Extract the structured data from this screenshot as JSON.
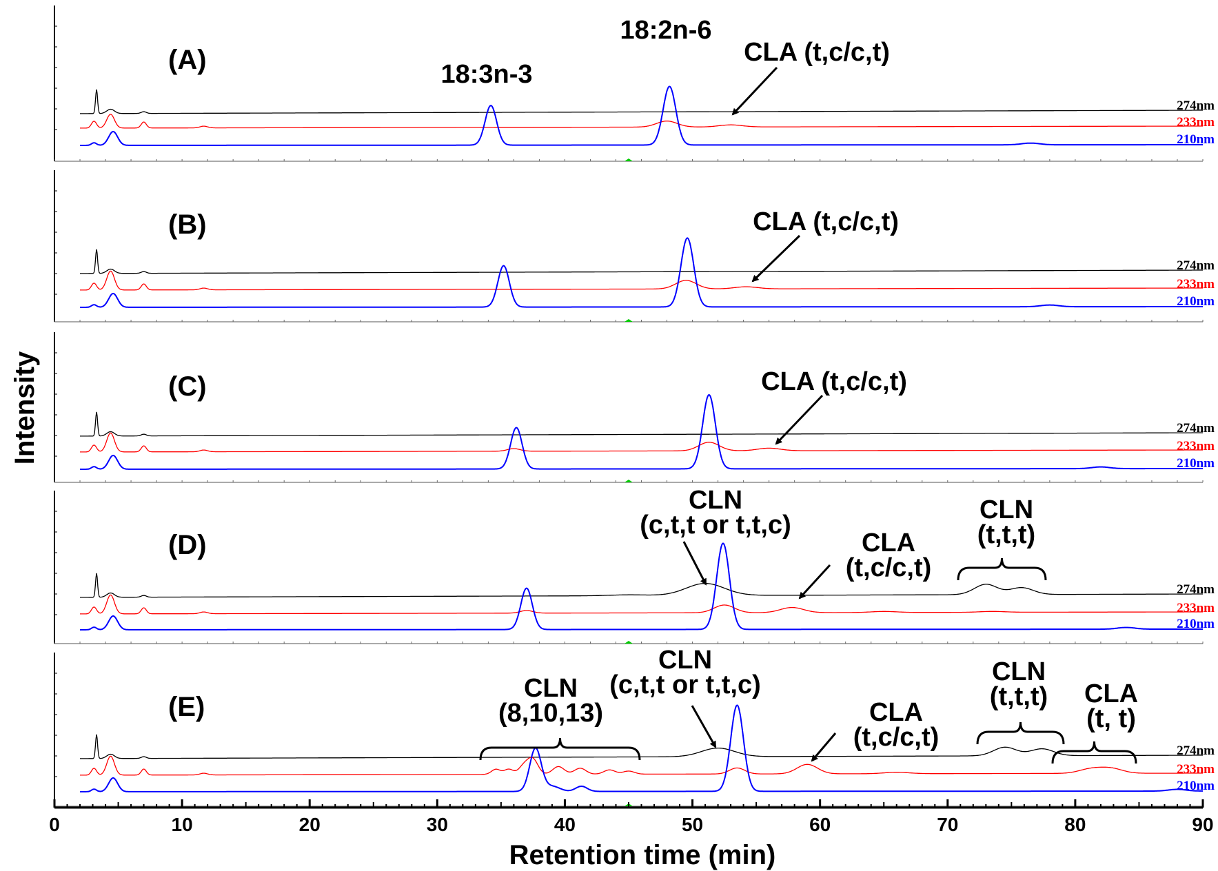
{
  "chart_data": {
    "type": "line",
    "ylabel": "Intensity",
    "xlabel": "Retention time (min)",
    "xlim": [
      0,
      90
    ],
    "x_ticks": [
      "0",
      "10",
      "20",
      "30",
      "40",
      "50",
      "60",
      "70",
      "80",
      "90"
    ],
    "grid": false,
    "series_names": [
      "274nm",
      "233nm",
      "210nm"
    ],
    "colors": {
      "274nm": "#000000",
      "233nm": "#ff0000",
      "210nm": "#0000ff"
    },
    "panels": [
      {
        "label": "(A)",
        "peak_labels": [
          "18:3n-3",
          "18:2n-6"
        ],
        "annotations": [
          {
            "text": "CLA (t,c/c,t)"
          }
        ],
        "series": [
          {
            "name": "274nm",
            "baseline": 0,
            "peaks": [
              [
                3.3,
                1.4,
                0.08
              ],
              [
                4.4,
                0.25,
                0.3
              ],
              [
                7.0,
                0.1,
                0.2
              ]
            ]
          },
          {
            "name": "233nm",
            "baseline": 0,
            "peaks": [
              [
                3.1,
                0.4,
                0.2
              ],
              [
                4.4,
                0.8,
                0.3
              ],
              [
                7.0,
                0.35,
                0.2
              ],
              [
                11.7,
                0.1,
                0.3
              ],
              [
                48.0,
                0.35,
                0.8
              ],
              [
                53.0,
                0.12,
                0.9
              ]
            ]
          },
          {
            "name": "210nm",
            "baseline": 0,
            "peaks": [
              [
                3.1,
                0.15,
                0.2
              ],
              [
                4.6,
                0.8,
                0.35
              ],
              [
                34.2,
                2.3,
                0.45
              ],
              [
                48.2,
                3.4,
                0.5
              ],
              [
                76.5,
                0.1,
                0.7
              ]
            ]
          }
        ]
      },
      {
        "label": "(B)",
        "peak_labels": [],
        "annotations": [
          {
            "text": "CLA (t,c/c,t)"
          }
        ],
        "series": [
          {
            "name": "274nm",
            "baseline": 0,
            "peaks": [
              [
                3.3,
                1.4,
                0.08
              ],
              [
                4.4,
                0.25,
                0.3
              ],
              [
                7.0,
                0.1,
                0.2
              ]
            ]
          },
          {
            "name": "233nm",
            "baseline": 0,
            "peaks": [
              [
                3.1,
                0.4,
                0.2
              ],
              [
                4.4,
                1.1,
                0.3
              ],
              [
                7.0,
                0.35,
                0.2
              ],
              [
                11.7,
                0.1,
                0.3
              ],
              [
                49.5,
                0.5,
                0.8
              ],
              [
                54.2,
                0.12,
                0.9
              ]
            ]
          },
          {
            "name": "210nm",
            "baseline": 0,
            "peaks": [
              [
                3.1,
                0.15,
                0.2
              ],
              [
                4.6,
                0.8,
                0.35
              ],
              [
                35.2,
                2.4,
                0.45
              ],
              [
                49.6,
                4.0,
                0.5
              ],
              [
                78.0,
                0.1,
                0.7
              ]
            ]
          }
        ]
      },
      {
        "label": "(C)",
        "peak_labels": [],
        "annotations": [
          {
            "text": "CLA (t,c/c,t)"
          }
        ],
        "series": [
          {
            "name": "274nm",
            "baseline": 0,
            "peaks": [
              [
                3.3,
                1.4,
                0.08
              ],
              [
                4.4,
                0.25,
                0.3
              ],
              [
                7.0,
                0.1,
                0.2
              ]
            ]
          },
          {
            "name": "233nm",
            "baseline": 0,
            "peaks": [
              [
                3.1,
                0.4,
                0.2
              ],
              [
                4.4,
                1.1,
                0.3
              ],
              [
                7.0,
                0.35,
                0.2
              ],
              [
                11.7,
                0.1,
                0.3
              ],
              [
                36.0,
                0.15,
                0.5
              ],
              [
                51.3,
                0.5,
                0.8
              ],
              [
                56.0,
                0.15,
                0.9
              ]
            ]
          },
          {
            "name": "210nm",
            "baseline": 0,
            "peaks": [
              [
                3.1,
                0.15,
                0.2
              ],
              [
                4.6,
                0.8,
                0.35
              ],
              [
                36.2,
                2.4,
                0.45
              ],
              [
                51.3,
                4.3,
                0.5
              ],
              [
                82.0,
                0.1,
                0.7
              ]
            ]
          }
        ]
      },
      {
        "label": "(D)",
        "peak_labels": [],
        "annotations": [
          {
            "text": "CLN",
            "text2": "(c,t,t or t,t,c)"
          },
          {
            "text": "CLA",
            "text2": "(t,c/c,t)"
          },
          {
            "text": "CLN",
            "text2": "(t,t,t)"
          }
        ],
        "series": [
          {
            "name": "274nm",
            "baseline": 0,
            "peaks": [
              [
                3.3,
                1.4,
                0.08
              ],
              [
                4.4,
                0.25,
                0.3
              ],
              [
                7.0,
                0.1,
                0.2
              ],
              [
                45.0,
                0.05,
                1.5
              ],
              [
                51.0,
                0.7,
                1.5
              ],
              [
                73.0,
                0.6,
                0.9
              ],
              [
                75.8,
                0.4,
                0.9
              ]
            ]
          },
          {
            "name": "233nm",
            "baseline": 0,
            "peaks": [
              [
                3.1,
                0.4,
                0.2
              ],
              [
                4.4,
                1.1,
                0.3
              ],
              [
                7.0,
                0.35,
                0.2
              ],
              [
                11.7,
                0.1,
                0.3
              ],
              [
                37.0,
                0.15,
                0.5
              ],
              [
                52.5,
                0.45,
                0.8
              ],
              [
                57.8,
                0.3,
                0.9
              ],
              [
                65.0,
                0.06,
                1.0
              ],
              [
                73.5,
                0.05,
                1.0
              ]
            ]
          },
          {
            "name": "210nm",
            "baseline": 0,
            "peaks": [
              [
                3.1,
                0.15,
                0.2
              ],
              [
                4.6,
                0.8,
                0.35
              ],
              [
                37.0,
                2.4,
                0.45
              ],
              [
                52.4,
                5.0,
                0.5
              ],
              [
                84.0,
                0.1,
                0.7
              ]
            ]
          }
        ]
      },
      {
        "label": "(E)",
        "peak_labels": [],
        "annotations": [
          {
            "text": "CLN",
            "text2": "(8,10,13)"
          },
          {
            "text": "CLN",
            "text2": "(c,t,t or t,t,c)"
          },
          {
            "text": "CLA",
            "text2": "(t,c/c,t)"
          },
          {
            "text": "CLN",
            "text2": "(t,t,t)"
          },
          {
            "text": "CLA",
            "text2": "(t, t)"
          }
        ],
        "series": [
          {
            "name": "274nm",
            "baseline": 0,
            "peaks": [
              [
                3.3,
                1.4,
                0.08
              ],
              [
                4.4,
                0.25,
                0.3
              ],
              [
                7.0,
                0.1,
                0.2
              ],
              [
                52.0,
                0.5,
                1.3
              ],
              [
                74.5,
                0.5,
                0.9
              ],
              [
                77.4,
                0.4,
                0.9
              ]
            ]
          },
          {
            "name": "233nm",
            "baseline": 0,
            "peaks": [
              [
                3.1,
                0.4,
                0.2
              ],
              [
                4.4,
                1.1,
                0.3
              ],
              [
                7.0,
                0.35,
                0.2
              ],
              [
                11.7,
                0.1,
                0.3
              ],
              [
                34.6,
                0.3,
                0.35
              ],
              [
                35.6,
                0.3,
                0.35
              ],
              [
                36.8,
                0.5,
                0.4
              ],
              [
                37.5,
                0.85,
                0.4
              ],
              [
                39.5,
                0.45,
                0.45
              ],
              [
                41.2,
                0.35,
                0.45
              ],
              [
                43.5,
                0.25,
                0.45
              ],
              [
                45.0,
                0.18,
                0.45
              ],
              [
                53.5,
                0.35,
                0.6
              ],
              [
                59.0,
                0.55,
                0.8
              ],
              [
                66.0,
                0.08,
                1.0
              ],
              [
                81.2,
                0.25,
                0.9
              ],
              [
                82.8,
                0.28,
                0.9
              ]
            ]
          },
          {
            "name": "210nm",
            "baseline": 0,
            "peaks": [
              [
                3.1,
                0.15,
                0.2
              ],
              [
                4.6,
                0.8,
                0.35
              ],
              [
                37.7,
                2.5,
                0.45
              ],
              [
                39.0,
                0.3,
                0.6
              ],
              [
                41.3,
                0.3,
                0.45
              ],
              [
                53.5,
                5.0,
                0.5
              ],
              [
                88.0,
                0.1,
                0.7
              ]
            ]
          }
        ]
      }
    ]
  }
}
